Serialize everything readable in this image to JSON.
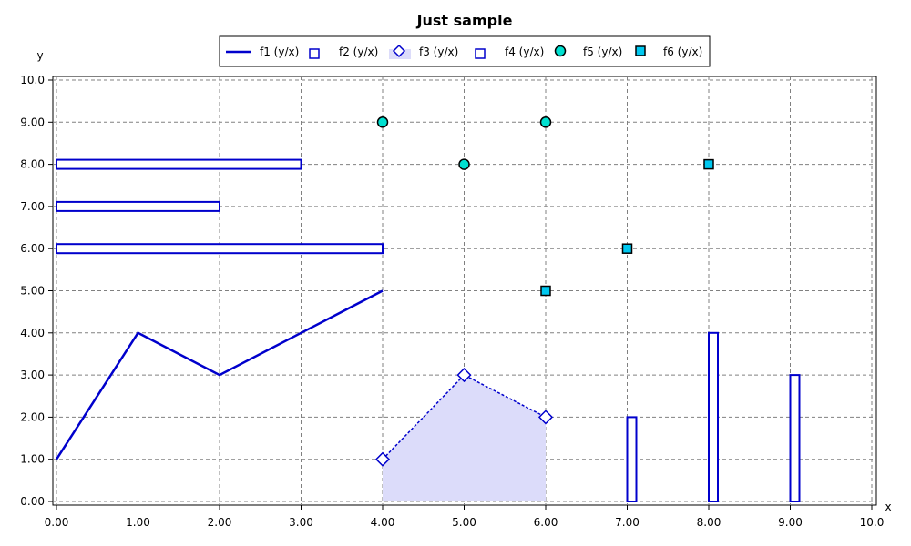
{
  "chart_data": {
    "type": "line",
    "title": "Just sample",
    "xlabel": "x",
    "ylabel": "y",
    "xlim": [
      0,
      10
    ],
    "ylim": [
      0,
      10
    ],
    "x_ticks": [
      "0.00",
      "1.00",
      "2.00",
      "3.00",
      "4.00",
      "5.00",
      "6.00",
      "7.00",
      "8.00",
      "9.00",
      "10.0"
    ],
    "y_ticks": [
      "0.00",
      "1.00",
      "2.00",
      "3.00",
      "4.00",
      "5.00",
      "6.00",
      "7.00",
      "8.00",
      "9.00",
      "10.0"
    ],
    "grid": true,
    "legend_position": "top",
    "colors": {
      "line": "#0000cc",
      "area_fill": "#dcdcfa",
      "f5_fill": "#00e0d0",
      "f6_fill": "#00c8f0",
      "grid": "#808080"
    },
    "series": [
      {
        "name": "f1 (y/x)",
        "kind": "line",
        "points": [
          [
            0,
            1
          ],
          [
            1,
            4
          ],
          [
            2,
            3
          ],
          [
            3,
            4
          ],
          [
            4,
            5
          ]
        ]
      },
      {
        "name": "f2 (y/x)",
        "kind": "horizontal-bar",
        "points": [
          [
            3,
            8
          ],
          [
            2,
            7
          ],
          [
            4,
            6
          ]
        ]
      },
      {
        "name": "f3 (y/x)",
        "kind": "area-dashed-diamond",
        "points": [
          [
            4,
            1
          ],
          [
            5,
            3
          ],
          [
            6,
            2
          ]
        ]
      },
      {
        "name": "f4 (y/x)",
        "kind": "vertical-bar",
        "points": [
          [
            7,
            2
          ],
          [
            8,
            4
          ],
          [
            9,
            3
          ]
        ]
      },
      {
        "name": "f5 (y/x)",
        "kind": "scatter-circle",
        "points": [
          [
            4,
            9
          ],
          [
            5,
            8
          ],
          [
            6,
            9
          ]
        ]
      },
      {
        "name": "f6 (y/x)",
        "kind": "scatter-square",
        "points": [
          [
            6,
            5
          ],
          [
            7,
            6
          ],
          [
            8,
            8
          ]
        ]
      }
    ]
  }
}
